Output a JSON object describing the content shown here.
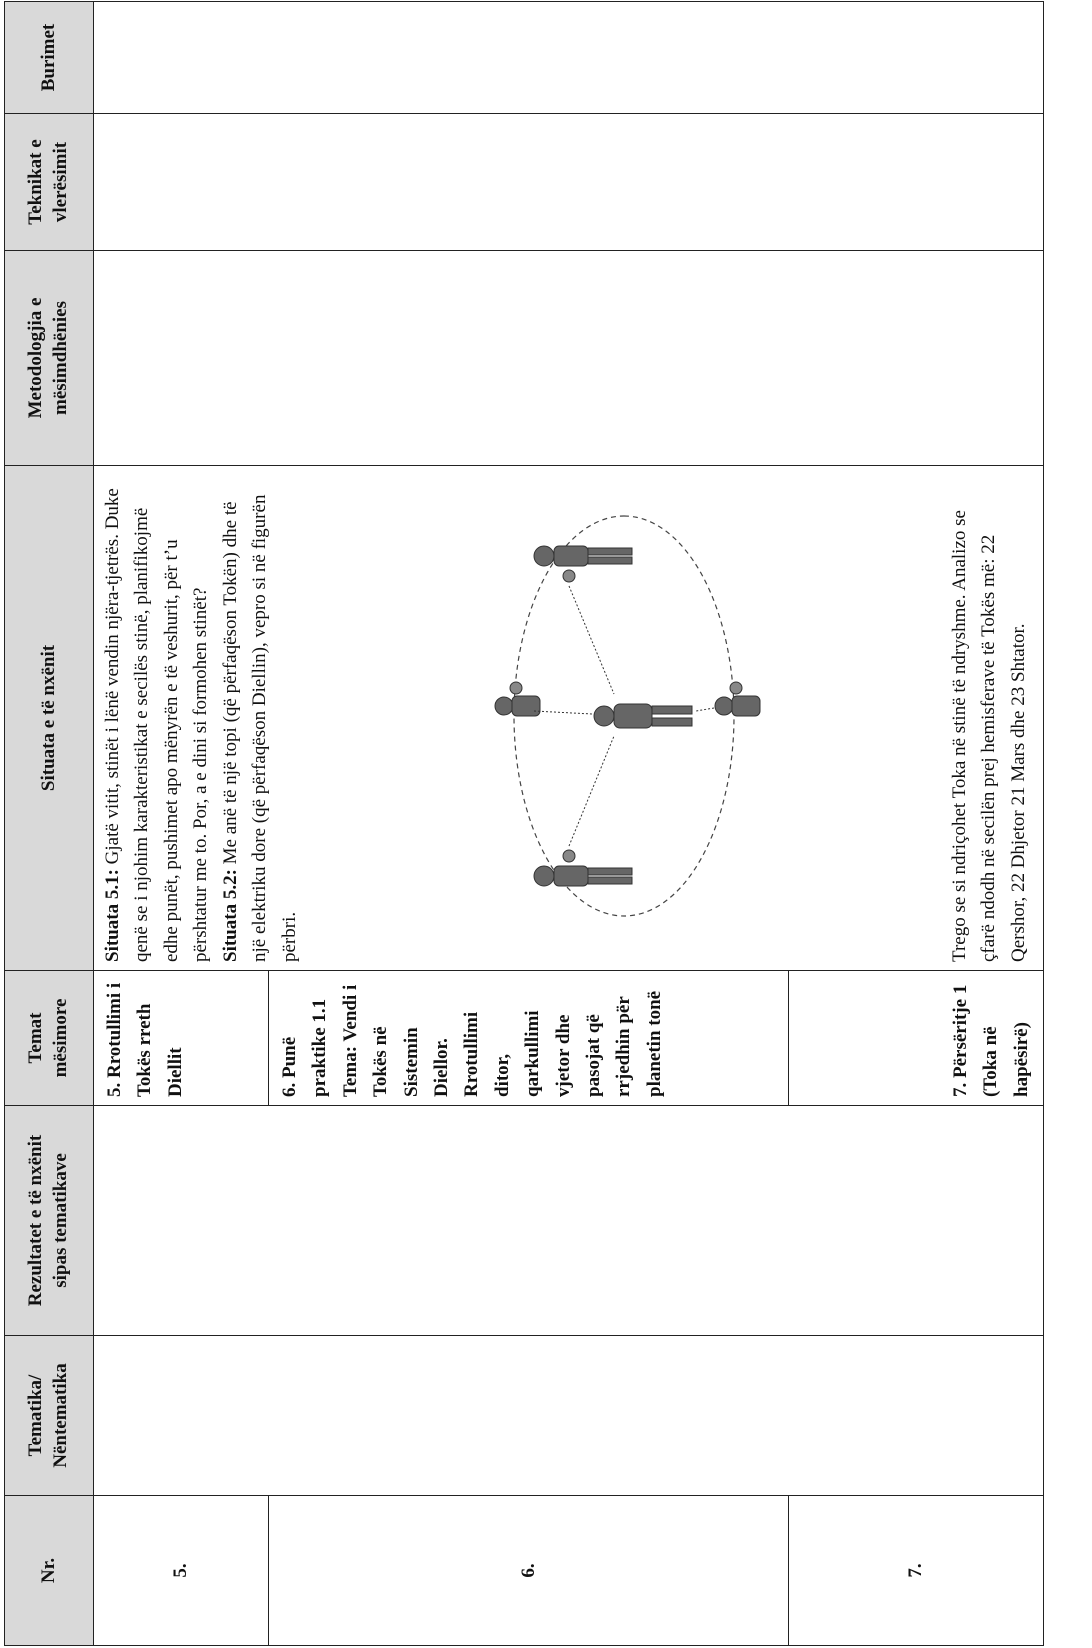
{
  "header": {
    "cells": [
      "Nr.",
      "Tematika/ Nëntematika",
      "Rezultatet e të nxënit sipas tematikave",
      "Temat mësimore",
      "Situata e të nxënit",
      "Metodologjia e mësimdhënies",
      "Teknikat e vlerësimit",
      "Burimet"
    ]
  },
  "rows": [
    {
      "nr": "5.",
      "topic": "5. Rrotullimi i Tokës rreth Diellit"
    },
    {
      "nr": "6.",
      "topic": "6. Punë praktike 1.1 Tema: Vendi i Tokës në Sistemin Diellor. Rrotullimi ditor, qarkullimi vjetor dhe pasojat që rrjedhin për planetin tonë"
    },
    {
      "nr": "7.",
      "topic": "7. Përsëritje 1 (Toka në hapësirë)"
    }
  ],
  "situata": {
    "s1": {
      "label": "Situata 5.1:",
      "text": "Gjatë vitit, stinët i lënë vendin njëra-tjetrës. Duke qenë se i njohim karakteristikat e secilës stinë, planifikojmë edhe punët, pushimet apo mënyrën e të veshurit, për t’u përshtatur me to. Por, a e dini si formohen stinët?"
    },
    "s2": {
      "label": "Situata 5.2:",
      "text": "Me anë të një topi (që përfaqëson Tokën) dhe të një elektriku dore (që përfaqëson Diellin), vepro si në figurën përbri."
    },
    "s3": {
      "text": "Trego se si ndriçohet Toka në stinë të ndryshme. Analizo se çfarë ndodh në secilën prej hemisferave të Tokës më: 22 Qershor, 22 Dhjetor 21 Mars dhe 23 Shtator."
    }
  }
}
